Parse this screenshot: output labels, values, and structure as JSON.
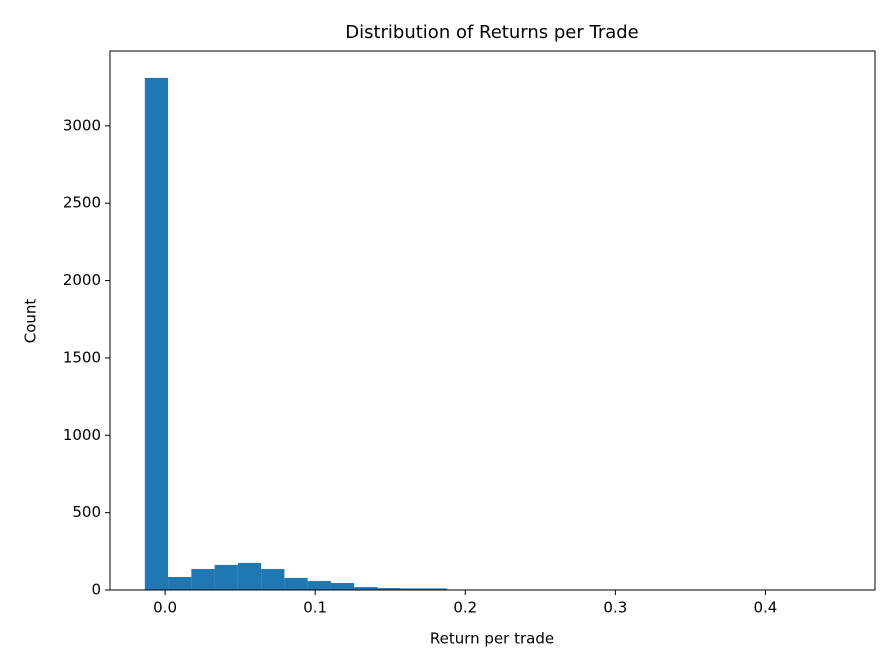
{
  "chart_data": {
    "type": "histogram",
    "title": "Distribution of Returns per Trade",
    "x_label": "Return per trade",
    "y_label": "Count",
    "bins": [
      -0.0135,
      0.002,
      0.0175,
      0.033,
      0.0485,
      0.064,
      0.0795,
      0.095,
      0.1105,
      0.126,
      0.1415,
      0.157,
      0.1725,
      0.188,
      0.2035,
      0.219,
      0.2345,
      0.25,
      0.2655,
      0.281,
      0.2965,
      0.312,
      0.3275,
      0.343,
      0.3585,
      0.374,
      0.3895,
      0.405,
      0.4205,
      0.436,
      0.4515
    ],
    "values": [
      3310,
      84,
      136,
      162,
      175,
      136,
      78,
      58,
      45,
      19,
      12,
      10,
      10,
      3,
      2,
      1,
      1,
      1,
      0,
      0,
      0,
      0,
      0,
      0,
      0,
      0,
      0,
      0,
      0,
      1
    ],
    "color": "#1f77b4",
    "xlim": [
      -0.0367,
      0.473
    ],
    "xticks": [
      {
        "value": 0,
        "label": "0.0"
      },
      0.1,
      0.2,
      0.3,
      0.4
    ],
    "ylim": [
      0,
      3484
    ],
    "yticks": [
      0,
      500,
      1000,
      1500,
      2000,
      2500,
      3000
    ],
    "grid": false
  }
}
